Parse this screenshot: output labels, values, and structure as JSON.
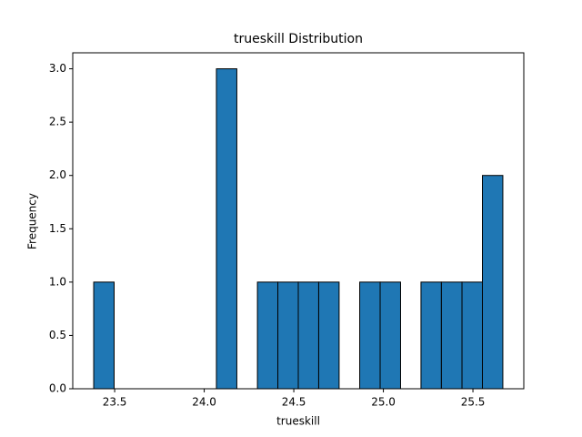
{
  "chart_data": {
    "type": "histogram",
    "title": "trueskill Distribution",
    "xlabel": "trueskill",
    "ylabel": "Frequency",
    "bins": [
      23.383,
      23.497,
      23.611,
      23.726,
      23.84,
      23.954,
      24.068,
      24.182,
      24.297,
      24.411,
      24.525,
      24.639,
      24.753,
      24.868,
      24.982,
      25.096,
      25.21,
      25.324,
      25.439,
      25.553,
      25.667
    ],
    "values": [
      1,
      0,
      0,
      0,
      0,
      0,
      3,
      0,
      1,
      1,
      1,
      1,
      0,
      1,
      1,
      0,
      1,
      1,
      1,
      2
    ],
    "color": "#1f77b4",
    "edgecolor": "#000000",
    "xlim": [
      23.266,
      25.784
    ],
    "xticks": [
      23.5,
      24.0,
      24.5,
      25.0,
      25.5
    ],
    "ylim": [
      0,
      3.15
    ],
    "yticks": [
      0.0,
      0.5,
      1.0,
      1.5,
      2.0,
      2.5,
      3.0
    ]
  }
}
